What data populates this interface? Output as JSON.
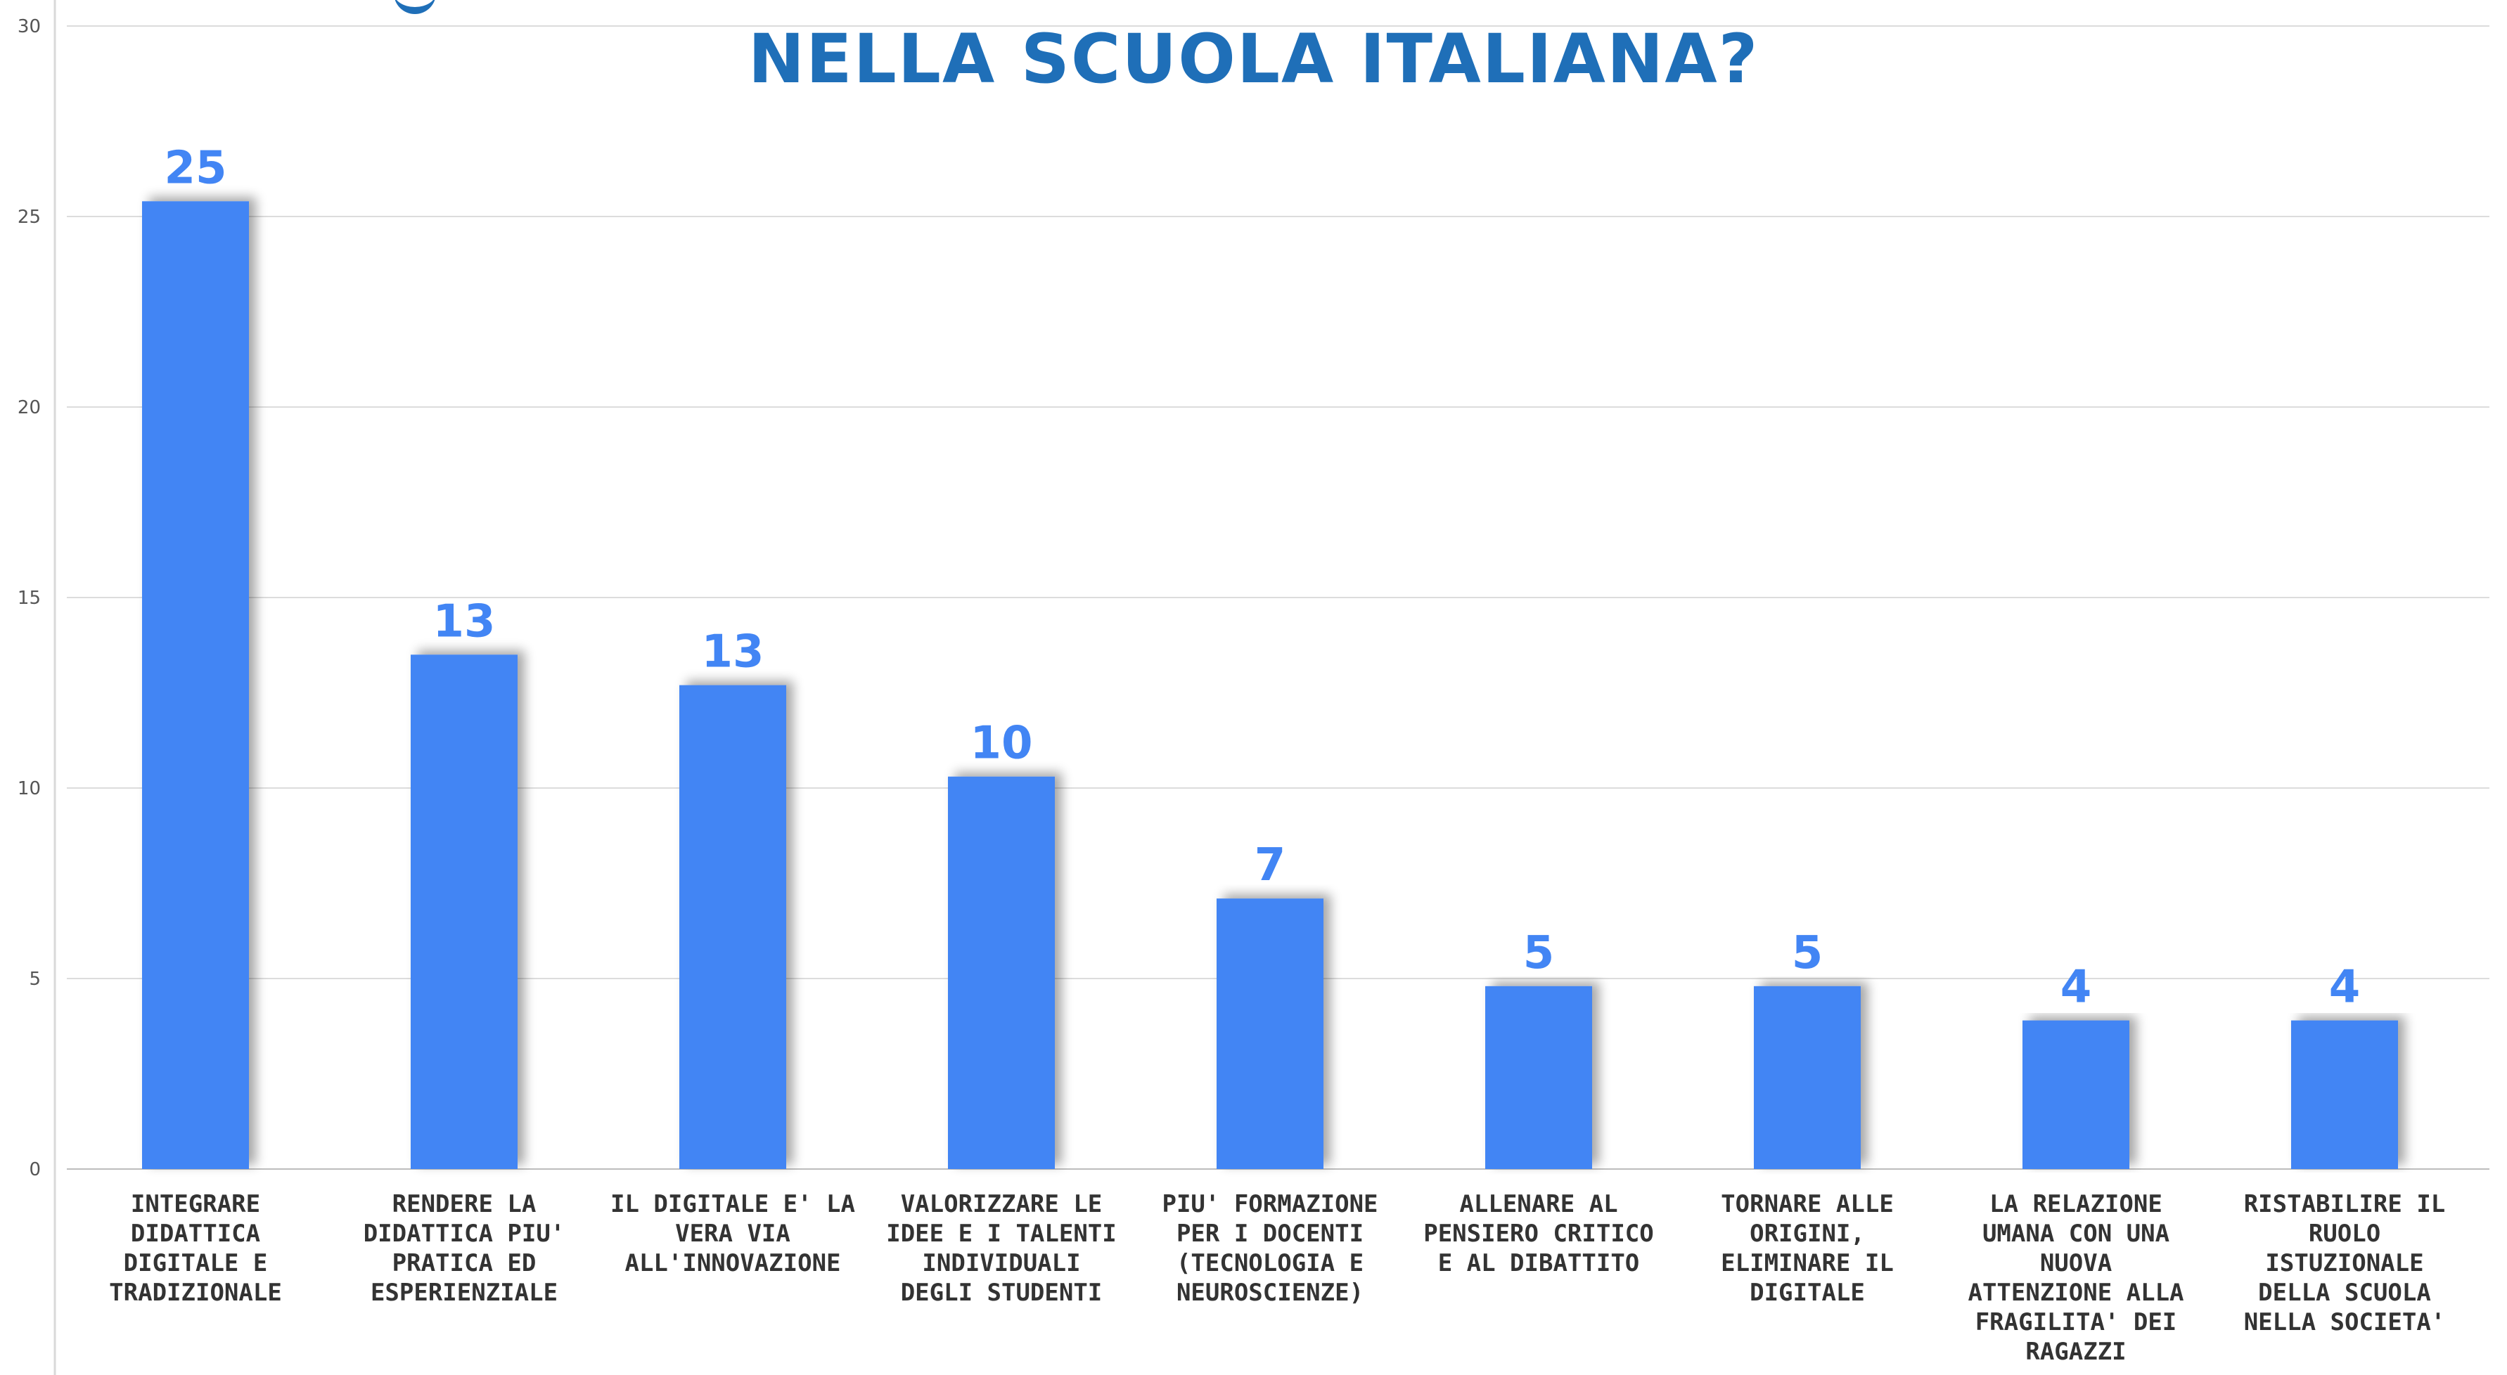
{
  "chart_data": {
    "type": "bar",
    "title": "NELLA SCUOLA ITALIANA?",
    "categories": [
      "INTEGRARE\nDIDATTICA\nDIGITALE E\nTRADIZIONALE",
      "RENDERE LA\nDIDATTICA PIU'\nPRATICA ED\nESPERIENZIALE",
      "IL DIGITALE E' LA\nVERA VIA\nALL'INNOVAZIONE",
      "VALORIZZARE LE\nIDEE E I TALENTI\nINDIVIDUALI\nDEGLI STUDENTI",
      "PIU' FORMAZIONE\nPER I DOCENTI\n(TECNOLOGIA E\nNEUROSCIENZE)",
      "ALLENARE AL\nPENSIERO CRITICO\nE AL DIBATTITO",
      "TORNARE ALLE\nORIGINI,\nELIMINARE IL\nDIGITALE",
      "LA RELAZIONE\nUMANA CON UNA\nNUOVA\nATTENZIONE ALLA\nFRAGILITA' DEI\nRAGAZZI",
      "RISTABILIRE IL\nRUOLO\nISTUZIONALE\nDELLA SCUOLA\nNELLA SOCIETA'"
    ],
    "values": [
      25.4,
      13.5,
      12.7,
      10.3,
      7.1,
      4.8,
      4.8,
      3.9,
      3.9
    ],
    "data_labels": [
      "25",
      "13",
      "13",
      "10",
      "7",
      "5",
      "5",
      "4",
      "4"
    ],
    "ylim": [
      0,
      30
    ],
    "yticks": [
      0,
      5,
      10,
      15,
      20,
      25,
      30
    ],
    "xlabel": "",
    "ylabel": "",
    "grid": true,
    "bar_color": "#4285f4",
    "label_color": "#4285f4",
    "title_color": "#1f6fb8"
  }
}
